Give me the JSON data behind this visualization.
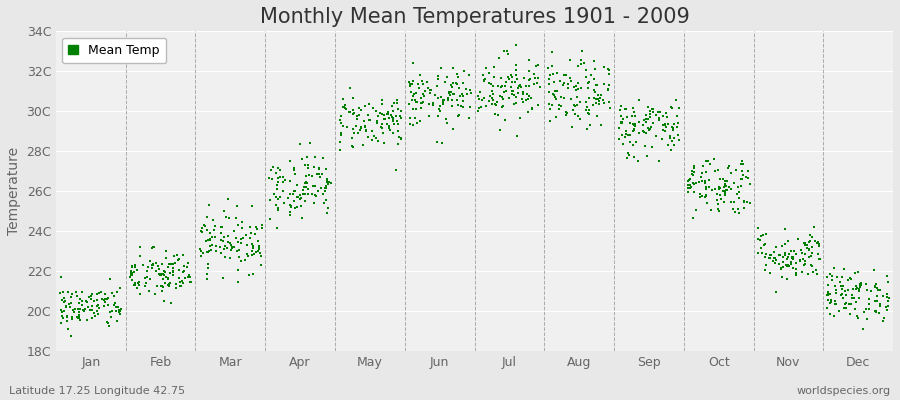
{
  "title": "Monthly Mean Temperatures 1901 - 2009",
  "ylabel": "Temperature",
  "subtitle": "Latitude 17.25 Longitude 42.75",
  "watermark": "worldspecies.org",
  "legend_label": "Mean Temp",
  "bg_color": "#e8e8e8",
  "plot_bg_color": "#f0f0f0",
  "point_color": "#008000",
  "point_size": 3,
  "ylim": [
    18,
    34
  ],
  "yticks": [
    18,
    20,
    22,
    24,
    26,
    28,
    30,
    32,
    34
  ],
  "ytick_labels": [
    "18C",
    "20C",
    "22C",
    "24C",
    "26C",
    "28C",
    "30C",
    "32C",
    "34C"
  ],
  "months": [
    "Jan",
    "Feb",
    "Mar",
    "Apr",
    "May",
    "Jun",
    "Jul",
    "Aug",
    "Sep",
    "Oct",
    "Nov",
    "Dec"
  ],
  "month_means": [
    20.2,
    21.8,
    23.5,
    26.3,
    29.5,
    30.6,
    31.2,
    30.8,
    29.2,
    26.3,
    22.8,
    20.8
  ],
  "month_stds": [
    0.55,
    0.65,
    0.75,
    0.8,
    0.7,
    0.75,
    0.85,
    0.85,
    0.75,
    0.75,
    0.65,
    0.65
  ],
  "n_years": 109,
  "title_fontsize": 15,
  "axis_label_fontsize": 10,
  "tick_fontsize": 9,
  "annotation_fontsize": 8,
  "dashed_color": "#999999",
  "grid_color": "#ffffff",
  "text_color": "#666666",
  "title_color": "#333333"
}
